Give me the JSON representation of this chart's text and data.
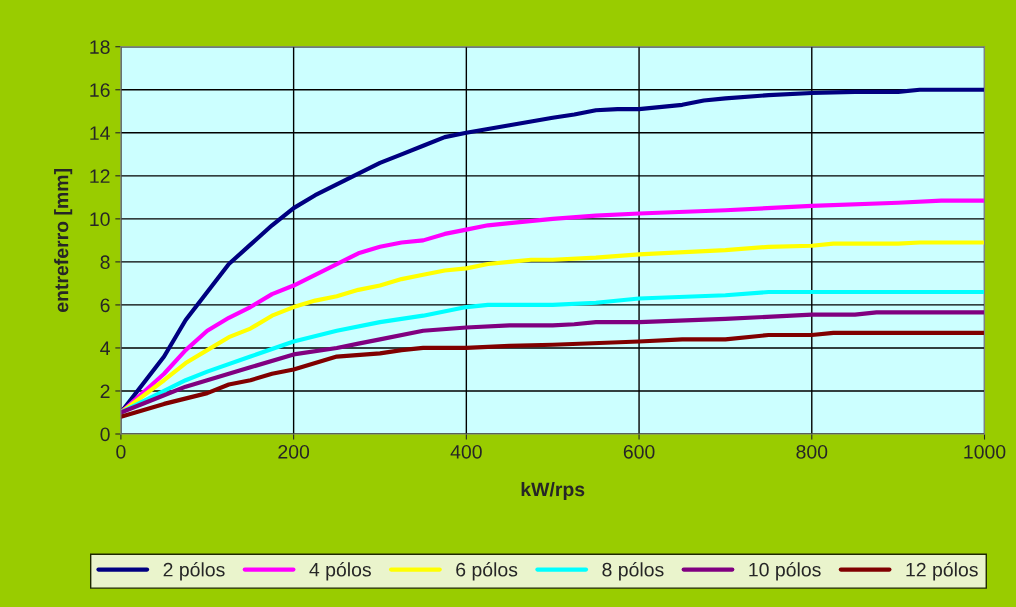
{
  "chart_data": {
    "type": "line",
    "xlabel": "kW/rps",
    "ylabel": "entreferro [mm]",
    "xlim": [
      0,
      1000
    ],
    "xticks": [
      0,
      200,
      400,
      600,
      800,
      1000
    ],
    "ylim": [
      0,
      18
    ],
    "yticks": [
      0,
      2,
      4,
      6,
      8,
      10,
      12,
      14,
      16,
      18
    ],
    "grid": true,
    "legend": "bottom",
    "marker": "none",
    "line_style": "solid",
    "series": [
      {
        "name": "2 pólos",
        "color": "#000080",
        "x": [
          0,
          50,
          75,
          100,
          125,
          150,
          175,
          200,
          225,
          250,
          275,
          300,
          325,
          350,
          375,
          400,
          450,
          500,
          525,
          550,
          575,
          600,
          650,
          675,
          700,
          750,
          800,
          850,
          900,
          925,
          1000
        ],
        "values": [
          1,
          3.6,
          5.3,
          6.6,
          7.9,
          8.8,
          9.7,
          10.5,
          11.1,
          11.6,
          12.1,
          12.6,
          13,
          13.4,
          13.8,
          14,
          14.35,
          14.7,
          14.85,
          15.05,
          15.1,
          15.1,
          15.3,
          15.5,
          15.6,
          15.75,
          15.85,
          15.9,
          15.9,
          16,
          16
        ]
      },
      {
        "name": "4 pólos",
        "color": "#ff00ff",
        "x": [
          0,
          50,
          75,
          100,
          125,
          150,
          175,
          200,
          225,
          250,
          275,
          300,
          325,
          350,
          375,
          400,
          425,
          450,
          500,
          550,
          600,
          700,
          800,
          900,
          950,
          1000
        ],
        "values": [
          1,
          2.8,
          3.9,
          4.8,
          5.4,
          5.9,
          6.5,
          6.9,
          7.4,
          7.9,
          8.4,
          8.7,
          8.9,
          9,
          9.3,
          9.5,
          9.7,
          9.8,
          10,
          10.15,
          10.25,
          10.4,
          10.6,
          10.75,
          10.85,
          10.85
        ]
      },
      {
        "name": "6 pólos",
        "color": "#ffff00",
        "x": [
          0,
          50,
          75,
          100,
          125,
          150,
          175,
          200,
          225,
          250,
          275,
          300,
          325,
          350,
          375,
          400,
          425,
          450,
          475,
          500,
          550,
          600,
          700,
          750,
          800,
          825,
          900,
          925,
          1000
        ],
        "values": [
          1,
          2.5,
          3.3,
          3.9,
          4.5,
          4.9,
          5.5,
          5.9,
          6.2,
          6.4,
          6.7,
          6.9,
          7.2,
          7.4,
          7.6,
          7.7,
          7.9,
          8,
          8.1,
          8.1,
          8.2,
          8.35,
          8.55,
          8.7,
          8.75,
          8.85,
          8.85,
          8.9,
          8.9
        ]
      },
      {
        "name": "8 pólos",
        "color": "#00ffff",
        "x": [
          0,
          50,
          75,
          100,
          150,
          200,
          250,
          300,
          350,
          400,
          425,
          450,
          500,
          550,
          600,
          700,
          750,
          1000
        ],
        "values": [
          1,
          2,
          2.5,
          2.9,
          3.6,
          4.3,
          4.8,
          5.2,
          5.5,
          5.9,
          6,
          6,
          6,
          6.1,
          6.3,
          6.45,
          6.6,
          6.6
        ]
      },
      {
        "name": "10 pólos",
        "color": "#800080",
        "x": [
          0,
          50,
          75,
          100,
          150,
          200,
          250,
          275,
          300,
          350,
          400,
          450,
          500,
          525,
          550,
          600,
          700,
          800,
          850,
          875,
          1000
        ],
        "values": [
          1,
          1.8,
          2.2,
          2.5,
          3.1,
          3.7,
          4,
          4.2,
          4.4,
          4.8,
          4.95,
          5.05,
          5.05,
          5.1,
          5.2,
          5.2,
          5.35,
          5.55,
          5.55,
          5.65,
          5.65
        ]
      },
      {
        "name": "12 pólos",
        "color": "#800000",
        "x": [
          0,
          50,
          100,
          125,
          150,
          175,
          200,
          225,
          250,
          300,
          325,
          350,
          400,
          450,
          500,
          600,
          650,
          700,
          750,
          800,
          825,
          1000
        ],
        "values": [
          0.8,
          1.4,
          1.9,
          2.3,
          2.5,
          2.8,
          3,
          3.3,
          3.6,
          3.75,
          3.9,
          4,
          4,
          4.1,
          4.15,
          4.3,
          4.4,
          4.4,
          4.6,
          4.6,
          4.7,
          4.7
        ]
      }
    ]
  }
}
